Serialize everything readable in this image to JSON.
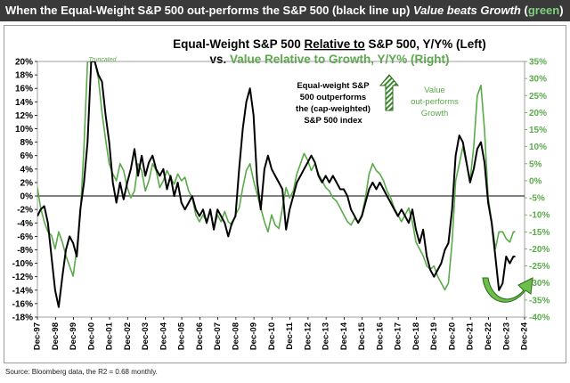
{
  "banner": {
    "part1": "When the Equal-Weight S&P 500 out-performs the S&P 500 (black line up) ",
    "part2": "Value beats Growth",
    "part3": " (",
    "part4": "green",
    "part5": ")"
  },
  "source": "Source: Bloomberg data, the R2 = 0.68 monthly.",
  "chart_data": {
    "type": "line",
    "title_line1_a": "Equal-Weight S&P 500 ",
    "title_line1_b": "Relative to",
    "title_line1_c": " S&P 500, Y/Y% (Left)",
    "title_line2_a": "vs. ",
    "title_line2_b": "Value Relative to Growth, Y/Y% (Right)",
    "annotations": {
      "truncated": "Truncated",
      "ew_text": [
        "Equal-weight S&P",
        "500 outperforms",
        "the (cap-weighted)",
        "S&P 500 index"
      ],
      "value_text": [
        "Value",
        "out-performs",
        "Growth"
      ]
    },
    "colors": {
      "equal_weight": "#000000",
      "value_growth": "#5aaa4a",
      "arrow_green": "#6cc04a"
    },
    "x_ticks": [
      "Dec-97",
      "Dec-98",
      "Dec-99",
      "Dec-00",
      "Dec-01",
      "Dec-02",
      "Dec-03",
      "Dec-04",
      "Dec-05",
      "Dec-06",
      "Dec-07",
      "Dec-08",
      "Dec-09",
      "Dec-10",
      "Dec-11",
      "Dec-12",
      "Dec-13",
      "Dec-14",
      "Dec-15",
      "Dec-16",
      "Dec-17",
      "Dec-18",
      "Dec-19",
      "Dec-20",
      "Dec-21",
      "Dec-22",
      "Dec-23",
      "Dec-24"
    ],
    "x_range": [
      1997.92,
      2024.92
    ],
    "y_left": {
      "min": -18,
      "max": 20,
      "step": 2,
      "ticks": [
        "-18%",
        "-16%",
        "-14%",
        "-12%",
        "-10%",
        "-8%",
        "-6%",
        "-4%",
        "-2%",
        "0%",
        "2%",
        "4%",
        "6%",
        "8%",
        "10%",
        "12%",
        "14%",
        "16%",
        "18%",
        "20%"
      ]
    },
    "y_right": {
      "min": -40,
      "max": 35,
      "step": 5,
      "ticks": [
        "-40%",
        "-35%",
        "-30%",
        "-25%",
        "-20%",
        "-15%",
        "-10%",
        "-5%",
        "0%",
        "5%",
        "10%",
        "15%",
        "20%",
        "25%",
        "30%",
        "35%"
      ]
    },
    "series": [
      {
        "axis": "left",
        "points": [
          [
            1997.92,
            -3
          ],
          [
            1998.1,
            -2
          ],
          [
            1998.3,
            -1.5
          ],
          [
            1998.5,
            -4
          ],
          [
            1998.7,
            -9
          ],
          [
            1998.9,
            -14
          ],
          [
            1999.1,
            -16.5
          ],
          [
            1999.3,
            -12
          ],
          [
            1999.5,
            -8
          ],
          [
            1999.7,
            -6
          ],
          [
            1999.9,
            -7
          ],
          [
            2000.1,
            -9
          ],
          [
            2000.3,
            -2
          ],
          [
            2000.5,
            2
          ],
          [
            2000.7,
            8
          ],
          [
            2000.9,
            20
          ],
          [
            2001.1,
            20
          ],
          [
            2001.3,
            18
          ],
          [
            2001.5,
            17
          ],
          [
            2001.7,
            12
          ],
          [
            2001.9,
            8
          ],
          [
            2002.1,
            2
          ],
          [
            2002.3,
            -1
          ],
          [
            2002.5,
            2
          ],
          [
            2002.7,
            -0.5
          ],
          [
            2002.9,
            2
          ],
          [
            2003.1,
            4
          ],
          [
            2003.3,
            7
          ],
          [
            2003.5,
            3
          ],
          [
            2003.7,
            6
          ],
          [
            2003.9,
            3
          ],
          [
            2004.1,
            5
          ],
          [
            2004.3,
            6
          ],
          [
            2004.5,
            4
          ],
          [
            2004.7,
            3
          ],
          [
            2004.9,
            4
          ],
          [
            2005.1,
            1
          ],
          [
            2005.3,
            3
          ],
          [
            2005.5,
            0
          ],
          [
            2005.7,
            2
          ],
          [
            2005.9,
            -1
          ],
          [
            2006.1,
            -2
          ],
          [
            2006.3,
            -1
          ],
          [
            2006.5,
            0
          ],
          [
            2006.7,
            -2
          ],
          [
            2006.9,
            -3
          ],
          [
            2007.1,
            -2
          ],
          [
            2007.3,
            -4
          ],
          [
            2007.5,
            -2
          ],
          [
            2007.7,
            -5
          ],
          [
            2007.9,
            -2
          ],
          [
            2008.1,
            -3
          ],
          [
            2008.3,
            -4
          ],
          [
            2008.5,
            -6
          ],
          [
            2008.7,
            -4
          ],
          [
            2008.9,
            -3
          ],
          [
            2009.1,
            4
          ],
          [
            2009.3,
            10
          ],
          [
            2009.5,
            14
          ],
          [
            2009.7,
            16
          ],
          [
            2009.9,
            12
          ],
          [
            2010.1,
            2
          ],
          [
            2010.3,
            -2
          ],
          [
            2010.5,
            4
          ],
          [
            2010.7,
            6
          ],
          [
            2010.9,
            4
          ],
          [
            2011.1,
            3
          ],
          [
            2011.3,
            2
          ],
          [
            2011.5,
            1
          ],
          [
            2011.7,
            -5
          ],
          [
            2011.9,
            -2
          ],
          [
            2012.1,
            0
          ],
          [
            2012.3,
            2
          ],
          [
            2012.5,
            3
          ],
          [
            2012.7,
            4
          ],
          [
            2012.9,
            5
          ],
          [
            2013.1,
            6
          ],
          [
            2013.3,
            5
          ],
          [
            2013.5,
            3
          ],
          [
            2013.7,
            2
          ],
          [
            2013.9,
            3
          ],
          [
            2014.1,
            2
          ],
          [
            2014.3,
            3
          ],
          [
            2014.5,
            2
          ],
          [
            2014.7,
            1
          ],
          [
            2014.9,
            1
          ],
          [
            2015.1,
            0
          ],
          [
            2015.3,
            -2
          ],
          [
            2015.5,
            -3
          ],
          [
            2015.7,
            -4
          ],
          [
            2015.9,
            -3
          ],
          [
            2016.1,
            -1
          ],
          [
            2016.3,
            1
          ],
          [
            2016.5,
            2
          ],
          [
            2016.7,
            1
          ],
          [
            2016.9,
            2
          ],
          [
            2017.1,
            1
          ],
          [
            2017.3,
            0
          ],
          [
            2017.5,
            -1
          ],
          [
            2017.7,
            -2
          ],
          [
            2017.9,
            -3
          ],
          [
            2018.1,
            -2
          ],
          [
            2018.3,
            -3
          ],
          [
            2018.5,
            -4
          ],
          [
            2018.7,
            -2
          ],
          [
            2018.9,
            -5
          ],
          [
            2019.1,
            -7
          ],
          [
            2019.3,
            -5
          ],
          [
            2019.5,
            -9
          ],
          [
            2019.7,
            -11
          ],
          [
            2019.9,
            -12
          ],
          [
            2020.1,
            -11
          ],
          [
            2020.3,
            -10
          ],
          [
            2020.5,
            -8
          ],
          [
            2020.7,
            -7
          ],
          [
            2020.9,
            -2
          ],
          [
            2021.1,
            6
          ],
          [
            2021.3,
            9
          ],
          [
            2021.5,
            8
          ],
          [
            2021.7,
            5
          ],
          [
            2021.9,
            2
          ],
          [
            2022.1,
            4
          ],
          [
            2022.3,
            7
          ],
          [
            2022.5,
            8
          ],
          [
            2022.7,
            5
          ],
          [
            2022.9,
            -1
          ],
          [
            2023.1,
            -4
          ],
          [
            2023.3,
            -9
          ],
          [
            2023.5,
            -14
          ],
          [
            2023.7,
            -13
          ],
          [
            2023.9,
            -9
          ],
          [
            2024.1,
            -10
          ],
          [
            2024.3,
            -9
          ],
          [
            2024.4,
            -9
          ]
        ]
      },
      {
        "axis": "right",
        "points": [
          [
            1997.92,
            -2
          ],
          [
            1998.1,
            -8
          ],
          [
            1998.3,
            -12
          ],
          [
            1998.5,
            -15
          ],
          [
            1998.7,
            -16
          ],
          [
            1998.9,
            -20
          ],
          [
            1999.1,
            -15
          ],
          [
            1999.3,
            -18
          ],
          [
            1999.5,
            -22
          ],
          [
            1999.7,
            -25
          ],
          [
            1999.9,
            -28
          ],
          [
            2000.1,
            -20
          ],
          [
            2000.3,
            -10
          ],
          [
            2000.5,
            10
          ],
          [
            2000.7,
            35
          ],
          [
            2000.9,
            35
          ],
          [
            2001.1,
            35
          ],
          [
            2001.3,
            30
          ],
          [
            2001.5,
            20
          ],
          [
            2001.7,
            12
          ],
          [
            2001.9,
            5
          ],
          [
            2002.1,
            2
          ],
          [
            2002.3,
            0
          ],
          [
            2002.5,
            5
          ],
          [
            2002.7,
            3
          ],
          [
            2002.9,
            -2
          ],
          [
            2003.1,
            -5
          ],
          [
            2003.3,
            -3
          ],
          [
            2003.5,
            5
          ],
          [
            2003.7,
            3
          ],
          [
            2003.9,
            -3
          ],
          [
            2004.1,
            0
          ],
          [
            2004.3,
            5
          ],
          [
            2004.5,
            3
          ],
          [
            2004.7,
            -2
          ],
          [
            2004.9,
            0
          ],
          [
            2005.1,
            3
          ],
          [
            2005.3,
            1
          ],
          [
            2005.5,
            -1
          ],
          [
            2005.7,
            2
          ],
          [
            2005.9,
            0
          ],
          [
            2006.1,
            1
          ],
          [
            2006.3,
            -3
          ],
          [
            2006.5,
            -5
          ],
          [
            2006.7,
            -10
          ],
          [
            2006.9,
            -12
          ],
          [
            2007.1,
            -10
          ],
          [
            2007.3,
            -12
          ],
          [
            2007.5,
            -9
          ],
          [
            2007.7,
            -14
          ],
          [
            2007.9,
            -10
          ],
          [
            2008.1,
            -12
          ],
          [
            2008.3,
            -9
          ],
          [
            2008.5,
            -12
          ],
          [
            2008.7,
            -13
          ],
          [
            2008.9,
            -10
          ],
          [
            2009.1,
            -8
          ],
          [
            2009.3,
            -2
          ],
          [
            2009.5,
            3
          ],
          [
            2009.7,
            5
          ],
          [
            2009.9,
            0
          ],
          [
            2010.1,
            -4
          ],
          [
            2010.3,
            -8
          ],
          [
            2010.5,
            -12
          ],
          [
            2010.7,
            -15
          ],
          [
            2010.9,
            -10
          ],
          [
            2011.1,
            -13
          ],
          [
            2011.3,
            -14
          ],
          [
            2011.5,
            -8
          ],
          [
            2011.7,
            -2
          ],
          [
            2011.9,
            -5
          ],
          [
            2012.1,
            -3
          ],
          [
            2012.3,
            2
          ],
          [
            2012.5,
            5
          ],
          [
            2012.7,
            8
          ],
          [
            2012.9,
            6
          ],
          [
            2013.1,
            3
          ],
          [
            2013.3,
            5
          ],
          [
            2013.5,
            2
          ],
          [
            2013.7,
            0
          ],
          [
            2013.9,
            -2
          ],
          [
            2014.1,
            -3
          ],
          [
            2014.3,
            -5
          ],
          [
            2014.5,
            -6
          ],
          [
            2014.7,
            -8
          ],
          [
            2014.9,
            -10
          ],
          [
            2015.1,
            -12
          ],
          [
            2015.3,
            -13
          ],
          [
            2015.5,
            -11
          ],
          [
            2015.7,
            -12
          ],
          [
            2015.9,
            -10
          ],
          [
            2016.1,
            -5
          ],
          [
            2016.3,
            2
          ],
          [
            2016.5,
            5
          ],
          [
            2016.7,
            3
          ],
          [
            2016.9,
            2
          ],
          [
            2017.1,
            0
          ],
          [
            2017.3,
            -3
          ],
          [
            2017.5,
            -5
          ],
          [
            2017.7,
            -8
          ],
          [
            2017.9,
            -10
          ],
          [
            2018.1,
            -12
          ],
          [
            2018.3,
            -10
          ],
          [
            2018.5,
            -8
          ],
          [
            2018.7,
            -12
          ],
          [
            2018.9,
            -18
          ],
          [
            2019.1,
            -20
          ],
          [
            2019.3,
            -22
          ],
          [
            2019.5,
            -25
          ],
          [
            2019.7,
            -26
          ],
          [
            2019.9,
            -25
          ],
          [
            2020.1,
            -28
          ],
          [
            2020.3,
            -30
          ],
          [
            2020.5,
            -32
          ],
          [
            2020.7,
            -30
          ],
          [
            2020.9,
            -18
          ],
          [
            2021.1,
            0
          ],
          [
            2021.3,
            5
          ],
          [
            2021.5,
            10
          ],
          [
            2021.7,
            5
          ],
          [
            2021.9,
            0
          ],
          [
            2022.1,
            10
          ],
          [
            2022.3,
            25
          ],
          [
            2022.5,
            28
          ],
          [
            2022.7,
            15
          ],
          [
            2022.9,
            -5
          ],
          [
            2023.1,
            -12
          ],
          [
            2023.3,
            -20
          ],
          [
            2023.5,
            -15
          ],
          [
            2023.7,
            -15
          ],
          [
            2023.9,
            -17
          ],
          [
            2024.1,
            -18
          ],
          [
            2024.3,
            -15
          ],
          [
            2024.4,
            -15
          ]
        ]
      }
    ]
  }
}
